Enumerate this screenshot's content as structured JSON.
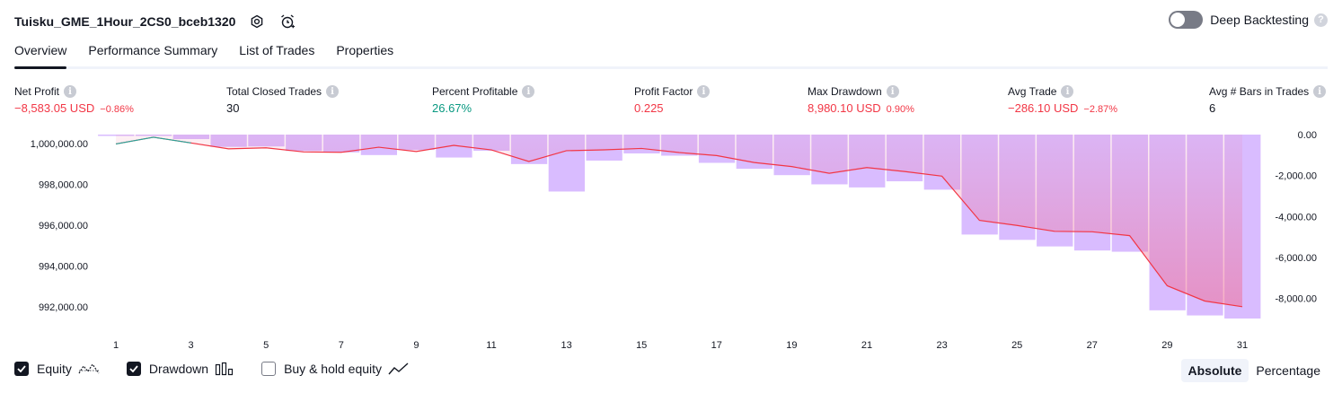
{
  "header": {
    "title": "Tuisku_GME_1Hour_2CS0_bceb1320",
    "deep_backtesting_label": "Deep Backtesting",
    "help_glyph": "?"
  },
  "tabs": [
    {
      "label": "Overview",
      "active": true
    },
    {
      "label": "Performance Summary",
      "active": false
    },
    {
      "label": "List of Trades",
      "active": false
    },
    {
      "label": "Properties",
      "active": false
    }
  ],
  "stats": {
    "info_glyph": "i",
    "net_profit": {
      "label": "Net Profit",
      "value": "−8,583.05 USD",
      "sub": "−0.86%"
    },
    "total_closed_trades": {
      "label": "Total Closed Trades",
      "value": "30"
    },
    "percent_profitable": {
      "label": "Percent Profitable",
      "value": "26.67%"
    },
    "profit_factor": {
      "label": "Profit Factor",
      "value": "0.225"
    },
    "max_drawdown": {
      "label": "Max Drawdown",
      "value": "8,980.10 USD",
      "sub": "0.90%"
    },
    "avg_trade": {
      "label": "Avg Trade",
      "value": "−286.10 USD",
      "sub": "−2.87%"
    },
    "avg_bars": {
      "label": "Avg # Bars in Trades",
      "value": "6"
    }
  },
  "chart_data": {
    "type": "line",
    "x": [
      1,
      2,
      3,
      4,
      5,
      6,
      7,
      8,
      9,
      10,
      11,
      12,
      13,
      14,
      15,
      16,
      17,
      18,
      19,
      20,
      21,
      22,
      23,
      24,
      25,
      26,
      27,
      28,
      29,
      30,
      31
    ],
    "x_tick_labels": [
      "1",
      "3",
      "5",
      "7",
      "9",
      "11",
      "13",
      "15",
      "17",
      "19",
      "21",
      "23",
      "25",
      "27",
      "29",
      "31"
    ],
    "equity": [
      999990,
      1000320,
      1000040,
      999750,
      999800,
      999600,
      999580,
      999830,
      999620,
      999920,
      999700,
      999130,
      999660,
      999700,
      999770,
      999570,
      999420,
      999080,
      998880,
      998550,
      998830,
      998640,
      998410,
      996240,
      995990,
      995700,
      995680,
      995490,
      993030,
      992280,
      992000
    ],
    "drawdown": [
      0,
      0,
      -220,
      -600,
      -580,
      -800,
      -870,
      -1000,
      -750,
      -1120,
      -790,
      -1440,
      -2780,
      -1270,
      -920,
      -1030,
      -1380,
      -1670,
      -1980,
      -2430,
      -2580,
      -2280,
      -2690,
      -4880,
      -5140,
      -5460,
      -5660,
      -5720,
      -8580,
      -8830,
      -8980
    ],
    "y_left_ticks": [
      "1,000,000.00",
      "998,000.00",
      "996,000.00",
      "994,000.00",
      "992,000.00"
    ],
    "y_left_range": [
      991200,
      1000450
    ],
    "y_right_ticks": [
      "0.00",
      "-2,000.00",
      "-4,000.00",
      "-6,000.00",
      "-8,000.00"
    ],
    "y_right_range": [
      -9200,
      0
    ],
    "colors": {
      "equity_line": "#f23645",
      "equity_fill": "#ef6f96",
      "equity_above": "#26a69a",
      "drawdown_bar": "#c9a0ff"
    }
  },
  "legend": {
    "equity": {
      "label": "Equity",
      "checked": true
    },
    "drawdown": {
      "label": "Drawdown",
      "checked": true
    },
    "buy_hold": {
      "label": "Buy & hold equity",
      "checked": false
    }
  },
  "scale_toggle": {
    "absolute": "Absolute",
    "percentage": "Percentage",
    "selected": "Absolute"
  }
}
